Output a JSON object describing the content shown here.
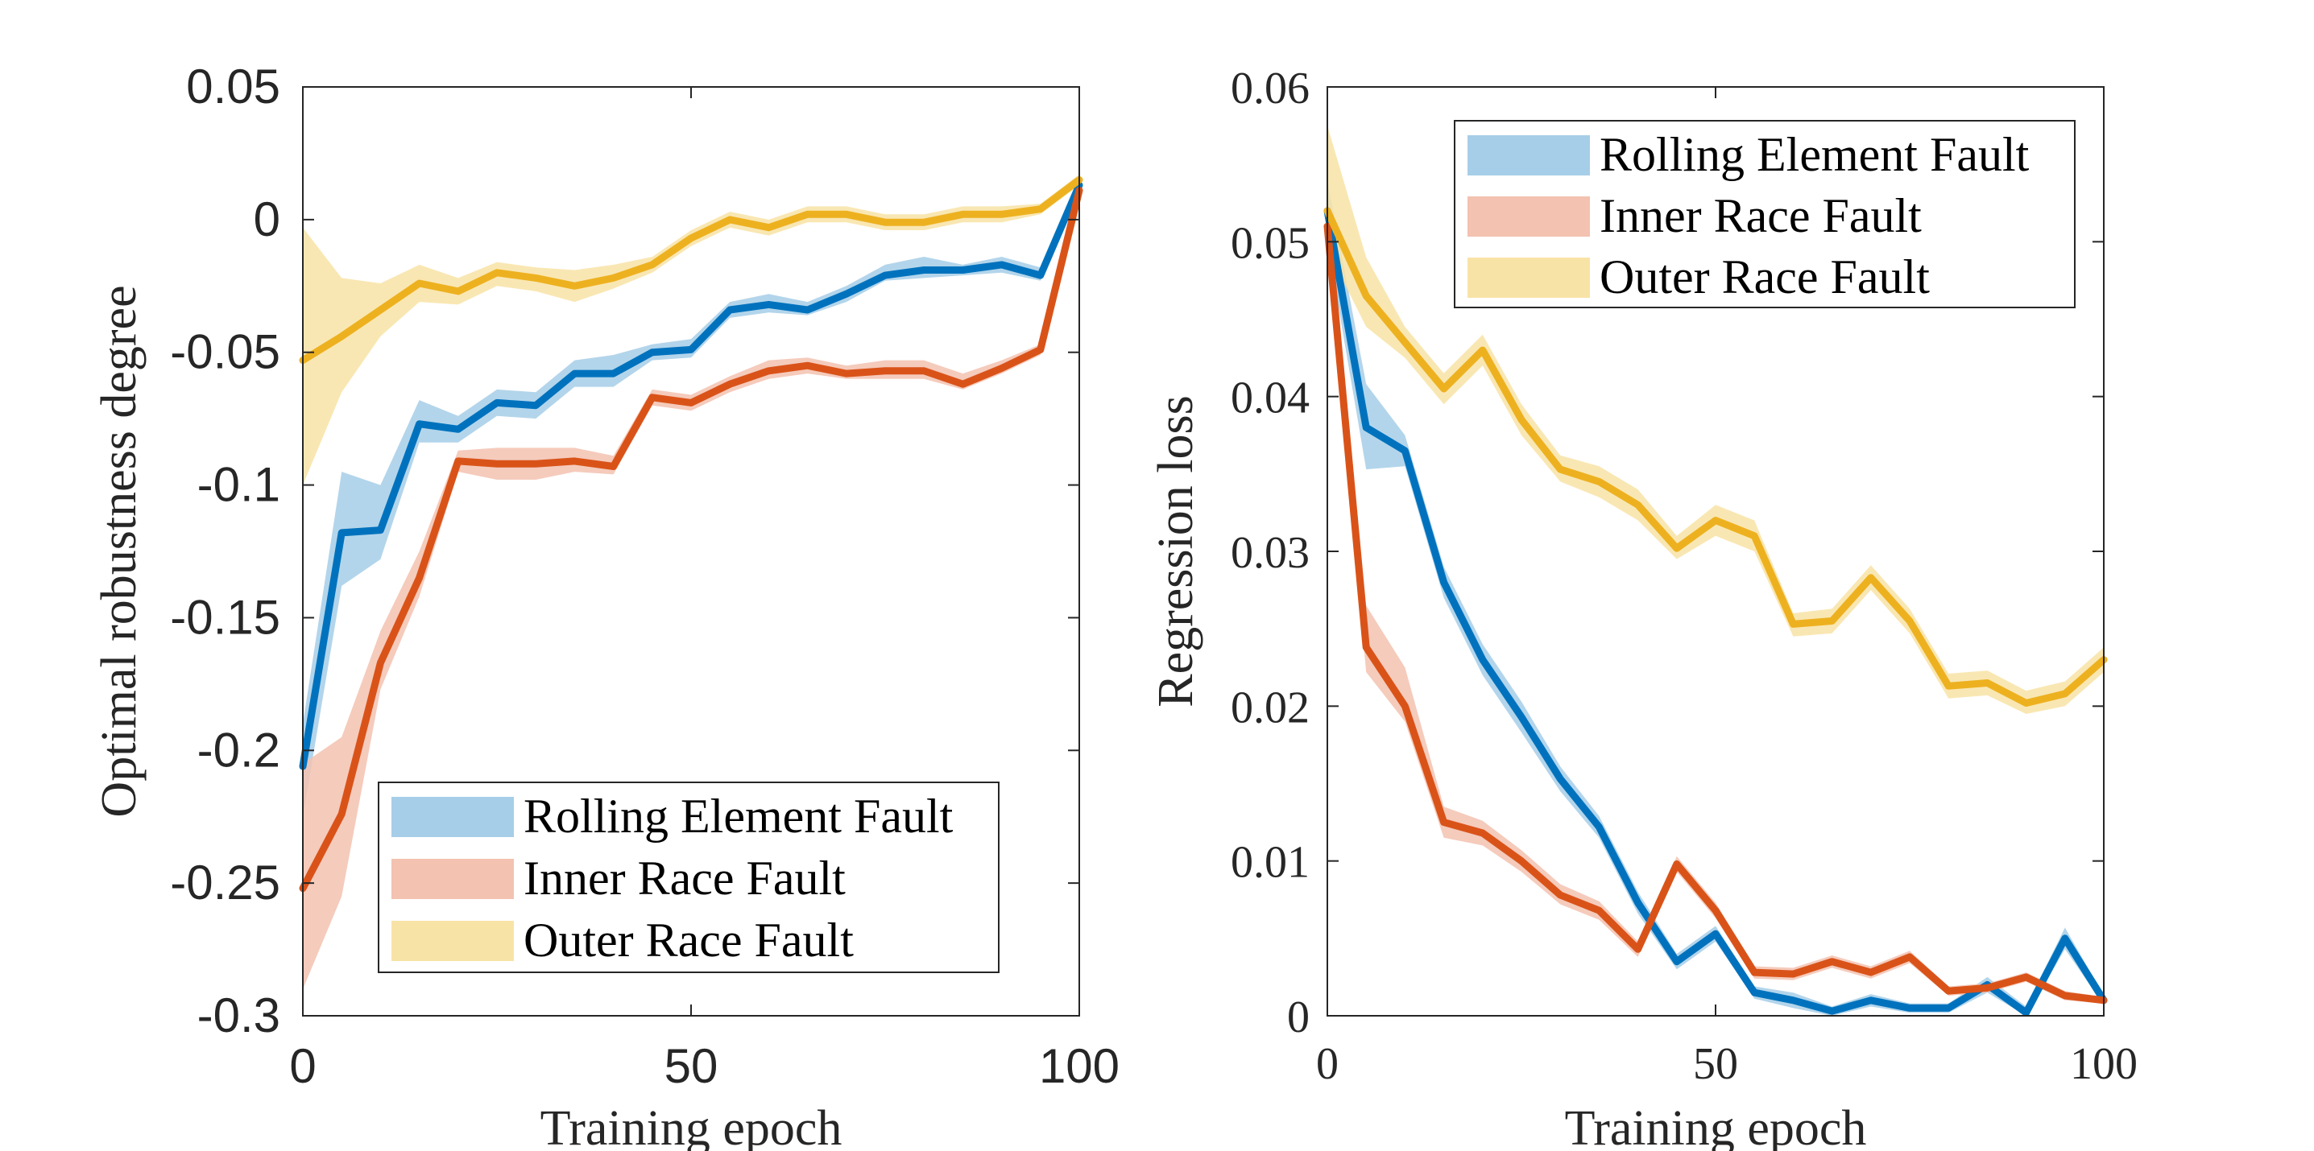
{
  "chart_data": [
    {
      "type": "line",
      "title": "",
      "xlabel": "Training epoch",
      "ylabel": "Optimal robustness degree",
      "xlim": [
        0,
        100
      ],
      "ylim": [
        -0.3,
        0.05
      ],
      "xticks": [
        0,
        50,
        100
      ],
      "xtick_labels": [
        "0",
        "50",
        "100"
      ],
      "yticks": [
        0.05,
        0,
        -0.05,
        -0.1,
        -0.15,
        -0.2,
        -0.25,
        -0.3
      ],
      "ytick_labels": [
        "0.05",
        "0",
        "-0.05",
        "-0.1",
        "-0.15",
        "-0.2",
        "-0.25",
        "-0.3"
      ],
      "grid": false,
      "legend_position": "bottom-right",
      "x": [
        0,
        5,
        10,
        15,
        20,
        25,
        30,
        35,
        40,
        45,
        50,
        55,
        60,
        65,
        70,
        75,
        80,
        85,
        90,
        95,
        100
      ],
      "series": [
        {
          "name": "Rolling Element Fault",
          "color": "#0072BD",
          "band_color": "#A6CEE8",
          "values": [
            -0.206,
            -0.118,
            -0.117,
            -0.077,
            -0.079,
            -0.069,
            -0.07,
            -0.058,
            -0.058,
            -0.05,
            -0.049,
            -0.034,
            -0.032,
            -0.034,
            -0.028,
            -0.021,
            -0.019,
            -0.019,
            -0.017,
            -0.021,
            0.013
          ],
          "lower": [
            -0.225,
            -0.138,
            -0.128,
            -0.084,
            -0.084,
            -0.074,
            -0.075,
            -0.063,
            -0.063,
            -0.053,
            -0.052,
            -0.037,
            -0.035,
            -0.036,
            -0.031,
            -0.023,
            -0.022,
            -0.021,
            -0.02,
            -0.023,
            0.011
          ],
          "upper": [
            -0.19,
            -0.095,
            -0.1,
            -0.068,
            -0.074,
            -0.064,
            -0.065,
            -0.053,
            -0.051,
            -0.047,
            -0.045,
            -0.031,
            -0.028,
            -0.031,
            -0.025,
            -0.017,
            -0.014,
            -0.017,
            -0.014,
            -0.018,
            0.015
          ]
        },
        {
          "name": "Inner Race Fault",
          "color": "#D95319",
          "band_color": "#F3C2B0",
          "values": [
            -0.252,
            -0.224,
            -0.167,
            -0.135,
            -0.091,
            -0.092,
            -0.092,
            -0.091,
            -0.093,
            -0.067,
            -0.069,
            -0.062,
            -0.057,
            -0.055,
            -0.058,
            -0.057,
            -0.057,
            -0.062,
            -0.056,
            -0.049,
            0.011
          ],
          "lower": [
            -0.29,
            -0.255,
            -0.177,
            -0.142,
            -0.095,
            -0.098,
            -0.098,
            -0.095,
            -0.096,
            -0.07,
            -0.072,
            -0.065,
            -0.06,
            -0.058,
            -0.06,
            -0.06,
            -0.06,
            -0.064,
            -0.058,
            -0.051,
            0.009
          ],
          "upper": [
            -0.205,
            -0.195,
            -0.155,
            -0.125,
            -0.087,
            -0.086,
            -0.086,
            -0.086,
            -0.089,
            -0.064,
            -0.066,
            -0.059,
            -0.053,
            -0.052,
            -0.055,
            -0.053,
            -0.053,
            -0.058,
            -0.053,
            -0.047,
            0.013
          ]
        },
        {
          "name": "Outer Race Fault",
          "color": "#EDB120",
          "band_color": "#F8E3A6",
          "values": [
            -0.053,
            -0.044,
            -0.034,
            -0.024,
            -0.027,
            -0.02,
            -0.022,
            -0.025,
            -0.022,
            -0.017,
            -0.007,
            0.0,
            -0.003,
            0.002,
            0.002,
            -0.001,
            -0.001,
            0.002,
            0.002,
            0.004,
            0.015
          ],
          "lower": [
            -0.1,
            -0.065,
            -0.044,
            -0.031,
            -0.032,
            -0.025,
            -0.027,
            -0.031,
            -0.026,
            -0.02,
            -0.01,
            -0.003,
            -0.006,
            -0.001,
            -0.001,
            -0.004,
            -0.004,
            -0.001,
            -0.001,
            0.002,
            0.013
          ],
          "upper": [
            -0.003,
            -0.022,
            -0.024,
            -0.017,
            -0.022,
            -0.016,
            -0.018,
            -0.019,
            -0.017,
            -0.014,
            -0.004,
            0.003,
            0.0,
            0.005,
            0.005,
            0.002,
            0.002,
            0.005,
            0.005,
            0.006,
            0.017
          ]
        }
      ]
    },
    {
      "type": "line",
      "title": "",
      "xlabel": "Training epoch",
      "ylabel": "Regression loss",
      "xlim": [
        0,
        100
      ],
      "ylim": [
        0,
        0.06
      ],
      "xticks": [
        0,
        50,
        100
      ],
      "xtick_labels": [
        "0",
        "50",
        "100"
      ],
      "yticks": [
        0.06,
        0.05,
        0.04,
        0.03,
        0.02,
        0.01,
        0
      ],
      "ytick_labels": [
        "0.06",
        "0.05",
        "0.04",
        "0.03",
        "0.02",
        "0.01",
        "0"
      ],
      "grid": false,
      "legend_position": "top-right",
      "x": [
        0,
        5,
        10,
        15,
        20,
        25,
        30,
        35,
        40,
        45,
        50,
        55,
        60,
        65,
        70,
        75,
        80,
        85,
        90,
        95,
        100
      ],
      "series": [
        {
          "name": "Rolling Element Fault",
          "color": "#0072BD",
          "band_color": "#A6CEE8",
          "values": [
            0.052,
            0.038,
            0.0365,
            0.028,
            0.023,
            0.0193,
            0.0153,
            0.0122,
            0.0073,
            0.0035,
            0.0053,
            0.0015,
            0.001,
            0.0003,
            0.001,
            0.0005,
            0.0005,
            0.002,
            0.0002,
            0.005,
            0.001
          ],
          "lower": [
            0.05,
            0.0353,
            0.0355,
            0.027,
            0.022,
            0.0183,
            0.0145,
            0.0115,
            0.0066,
            0.003,
            0.0048,
            0.0011,
            0.0005,
            0.0,
            0.0006,
            0.0002,
            0.0002,
            0.0015,
            0.0,
            0.0043,
            0.0007
          ],
          "upper": [
            0.054,
            0.0408,
            0.0375,
            0.029,
            0.024,
            0.0203,
            0.0161,
            0.0129,
            0.008,
            0.004,
            0.0058,
            0.0019,
            0.0015,
            0.0006,
            0.0014,
            0.0008,
            0.0008,
            0.0025,
            0.0006,
            0.0057,
            0.0013
          ]
        },
        {
          "name": "Inner Race Fault",
          "color": "#D95319",
          "band_color": "#F3C2B0",
          "values": [
            0.051,
            0.0238,
            0.02,
            0.0125,
            0.0118,
            0.01,
            0.0078,
            0.0068,
            0.0043,
            0.0098,
            0.0068,
            0.0028,
            0.0027,
            0.0035,
            0.0028,
            0.0038,
            0.0016,
            0.0018,
            0.0025,
            0.0013,
            0.001
          ],
          "lower": [
            0.049,
            0.0222,
            0.019,
            0.0115,
            0.011,
            0.0093,
            0.0072,
            0.0062,
            0.0038,
            0.0093,
            0.0063,
            0.0024,
            0.0023,
            0.0031,
            0.0024,
            0.0034,
            0.0013,
            0.0015,
            0.0022,
            0.001,
            0.0008
          ],
          "upper": [
            0.053,
            0.0265,
            0.0225,
            0.0135,
            0.0126,
            0.0107,
            0.0085,
            0.0074,
            0.0048,
            0.0103,
            0.0073,
            0.0032,
            0.0031,
            0.0039,
            0.0032,
            0.0042,
            0.0019,
            0.0021,
            0.0028,
            0.0016,
            0.0012
          ]
        },
        {
          "name": "Outer Race Fault",
          "color": "#EDB120",
          "band_color": "#F8E3A6",
          "values": [
            0.052,
            0.0465,
            0.0435,
            0.0405,
            0.043,
            0.0385,
            0.0353,
            0.0345,
            0.033,
            0.0302,
            0.032,
            0.031,
            0.0253,
            0.0255,
            0.0283,
            0.0255,
            0.0213,
            0.0215,
            0.0202,
            0.0208,
            0.023
          ],
          "lower": [
            0.0495,
            0.0445,
            0.0425,
            0.0395,
            0.042,
            0.0375,
            0.0345,
            0.0335,
            0.032,
            0.0295,
            0.031,
            0.03,
            0.0245,
            0.0247,
            0.0275,
            0.0247,
            0.0205,
            0.0207,
            0.0195,
            0.02,
            0.0222
          ],
          "upper": [
            0.0575,
            0.049,
            0.0445,
            0.0415,
            0.044,
            0.0395,
            0.0362,
            0.0355,
            0.034,
            0.031,
            0.033,
            0.032,
            0.026,
            0.0263,
            0.0291,
            0.0263,
            0.0221,
            0.0223,
            0.021,
            0.0216,
            0.0238
          ]
        }
      ]
    }
  ]
}
